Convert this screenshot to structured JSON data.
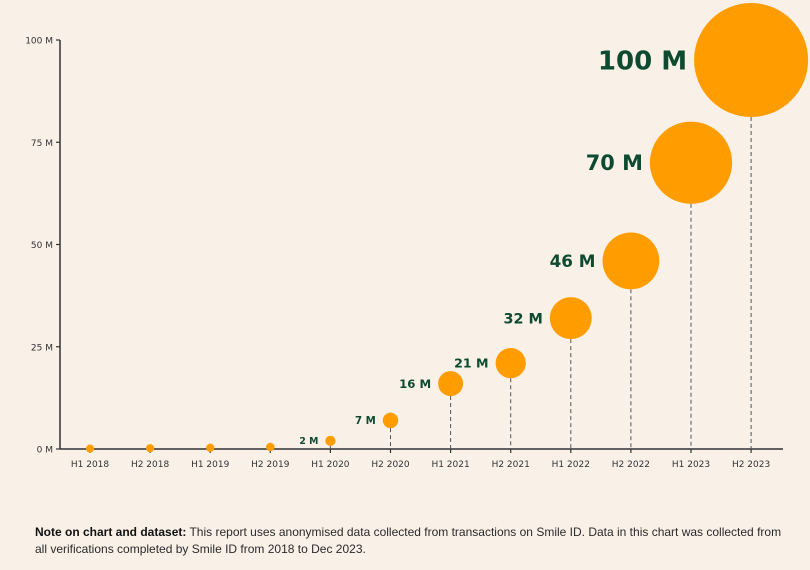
{
  "chart_data": {
    "type": "scatter",
    "subtype": "bubble",
    "title": "",
    "xlabel": "",
    "ylabel": "",
    "ylim": [
      0,
      100
    ],
    "yticks": [
      0,
      25,
      50,
      75,
      100
    ],
    "ytick_labels": [
      "0 M",
      "25 M",
      "50 M",
      "75 M",
      "100 M"
    ],
    "categories": [
      "H1 2018",
      "H2 2018",
      "H1 2019",
      "H2 2019",
      "H1 2020",
      "H2 2020",
      "H1 2021",
      "H2 2021",
      "H1 2022",
      "H2 2022",
      "H1 2023",
      "H2 2023"
    ],
    "values": [
      0.1,
      0.2,
      0.3,
      0.5,
      2,
      7,
      16,
      21,
      32,
      46,
      70,
      100
    ],
    "data_labels": [
      "",
      "",
      "",
      "",
      "2 M",
      "7 M",
      "16 M",
      "21 M",
      "32 M",
      "46 M",
      "70 M",
      "100 M"
    ],
    "grid": false,
    "colors": {
      "bubble": "#ff9d00",
      "label": "#0d4a2f",
      "axis": "#333333"
    }
  },
  "note": {
    "bold": "Note on chart and dataset:",
    "text": " This report uses anonymised data collected from transactions on Smile ID. Data in this chart was collected from all verifications completed by Smile ID from 2018 to Dec 2023."
  }
}
